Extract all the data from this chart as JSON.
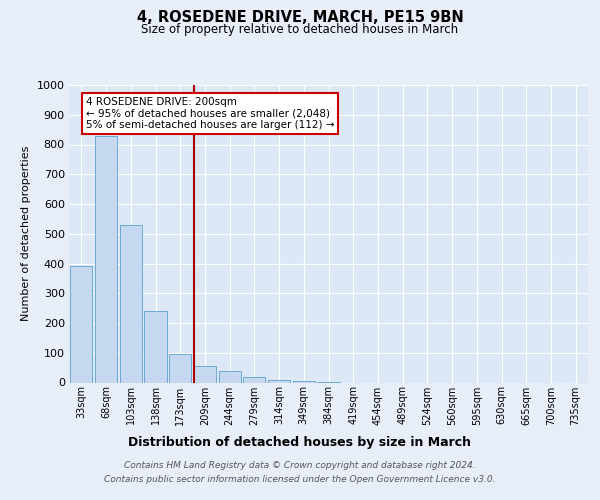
{
  "title": "4, ROSEDENE DRIVE, MARCH, PE15 9BN",
  "subtitle": "Size of property relative to detached houses in March",
  "xlabel": "Distribution of detached houses by size in March",
  "ylabel": "Number of detached properties",
  "bar_color": "#c5d8f0",
  "bar_edge_color": "#6aaad4",
  "vline_color": "#aa0000",
  "annotation_text": "4 ROSEDENE DRIVE: 200sqm\n← 95% of detached houses are smaller (2,048)\n5% of semi-detached houses are larger (112) →",
  "annotation_box_color": "#cc0000",
  "ylim": [
    0,
    1000
  ],
  "yticks": [
    0,
    100,
    200,
    300,
    400,
    500,
    600,
    700,
    800,
    900,
    1000
  ],
  "categories": [
    "33sqm",
    "68sqm",
    "103sqm",
    "138sqm",
    "173sqm",
    "209sqm",
    "244sqm",
    "279sqm",
    "314sqm",
    "349sqm",
    "384sqm",
    "419sqm",
    "454sqm",
    "489sqm",
    "524sqm",
    "560sqm",
    "595sqm",
    "630sqm",
    "665sqm",
    "700sqm",
    "735sqm"
  ],
  "values": [
    390,
    830,
    530,
    240,
    95,
    55,
    40,
    20,
    10,
    5,
    3,
    0,
    0,
    0,
    0,
    0,
    0,
    0,
    0,
    0,
    0
  ],
  "vline_idx": 5,
  "footer_line1": "Contains HM Land Registry data © Crown copyright and database right 2024.",
  "footer_line2": "Contains public sector information licensed under the Open Government Licence v3.0.",
  "bg_color": "#e8eef8",
  "plot_bg_color": "#dce8f5",
  "grid_color": "#c8d4e8"
}
